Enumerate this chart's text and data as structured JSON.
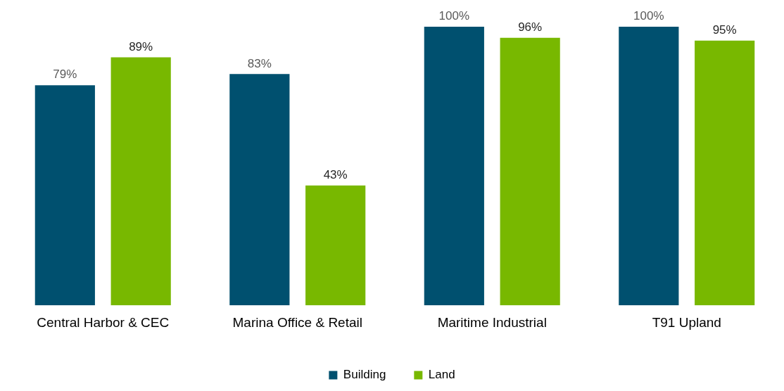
{
  "chart_data": {
    "type": "bar",
    "categories": [
      "Central Harbor & CEC",
      "Marina Office & Retail",
      "Maritime Industrial",
      "T91 Upland"
    ],
    "series": [
      {
        "name": "Building",
        "color": "#00506f",
        "values": [
          79,
          83,
          100,
          100
        ],
        "value_labels": [
          "79%",
          "83%",
          "100%",
          "100%"
        ]
      },
      {
        "name": "Land",
        "color": "#78b800",
        "values": [
          89,
          43,
          96,
          95
        ],
        "value_labels": [
          "89%",
          "43%",
          "96%",
          "95%"
        ]
      }
    ],
    "ylim": [
      0,
      100
    ],
    "relative": false,
    "grid": false,
    "legend": "bottom"
  }
}
